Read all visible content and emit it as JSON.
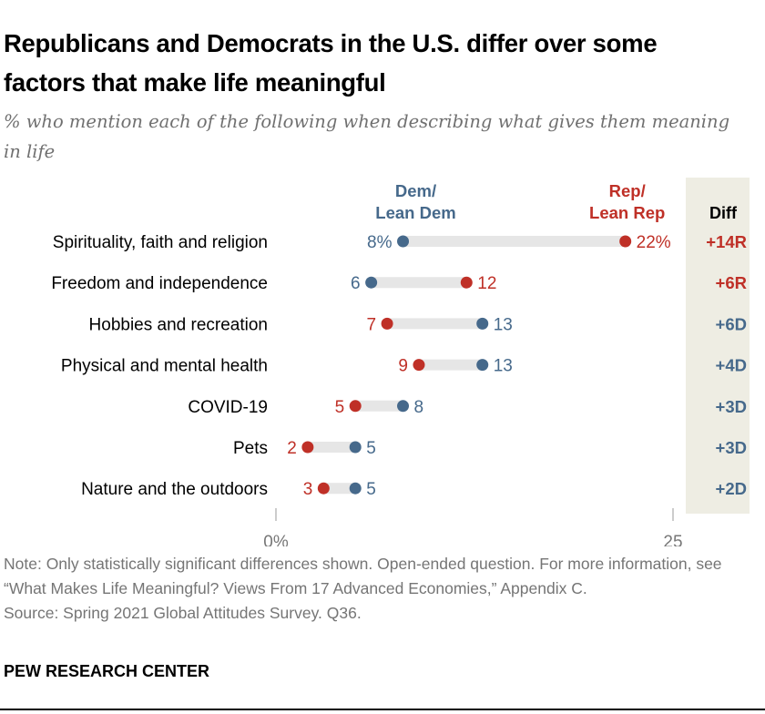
{
  "title": "Republicans and Democrats in the U.S. differ over some factors that make life meaningful",
  "subtitle": "% who mention each of the following when describing what gives them meaning in life",
  "note": "Note: Only statistically significant differences shown. Open-ended question.  For more information, see “What Makes Life Meaningful? Views From 17 Advanced Economies,” Appendix C.",
  "source": "Source: Spring 2021 Global Attitudes Survey. Q36.",
  "logo": "PEW RESEARCH CENTER",
  "chart_data": {
    "type": "dumbbell",
    "categories": [
      "Spirituality, faith and religion",
      "Freedom and independence",
      "Hobbies and recreation",
      "Physical and mental health",
      "COVID-19",
      "Pets",
      "Nature and the outdoors"
    ],
    "series": [
      {
        "name": "Dem/ Lean Dem",
        "name_lines": [
          "Dem/",
          "Lean Dem"
        ],
        "color": "#46698b",
        "values": [
          8,
          6,
          13,
          13,
          8,
          5,
          5
        ]
      },
      {
        "name": "Rep/ Lean Rep",
        "name_lines": [
          "Rep/",
          "Lean Rep"
        ],
        "color": "#bf3027",
        "values": [
          22,
          12,
          7,
          9,
          5,
          2,
          3
        ]
      }
    ],
    "value_labels": {
      "dem": [
        "8%",
        "6",
        "13",
        "13",
        "8",
        "5",
        "5"
      ],
      "rep": [
        "22%",
        "12",
        "7",
        "9",
        "5",
        "2",
        "3"
      ]
    },
    "diff": {
      "header": "Diff",
      "values": [
        "+14R",
        "+6R",
        "+6D",
        "+4D",
        "+3D",
        "+3D",
        "+2D"
      ],
      "background": "#eeede3"
    },
    "xlim": [
      0,
      25
    ],
    "xticks": [
      0,
      25
    ],
    "xtick_labels": [
      "0%",
      "25"
    ],
    "bar_color": "#e6e6e6",
    "grid": false
  }
}
